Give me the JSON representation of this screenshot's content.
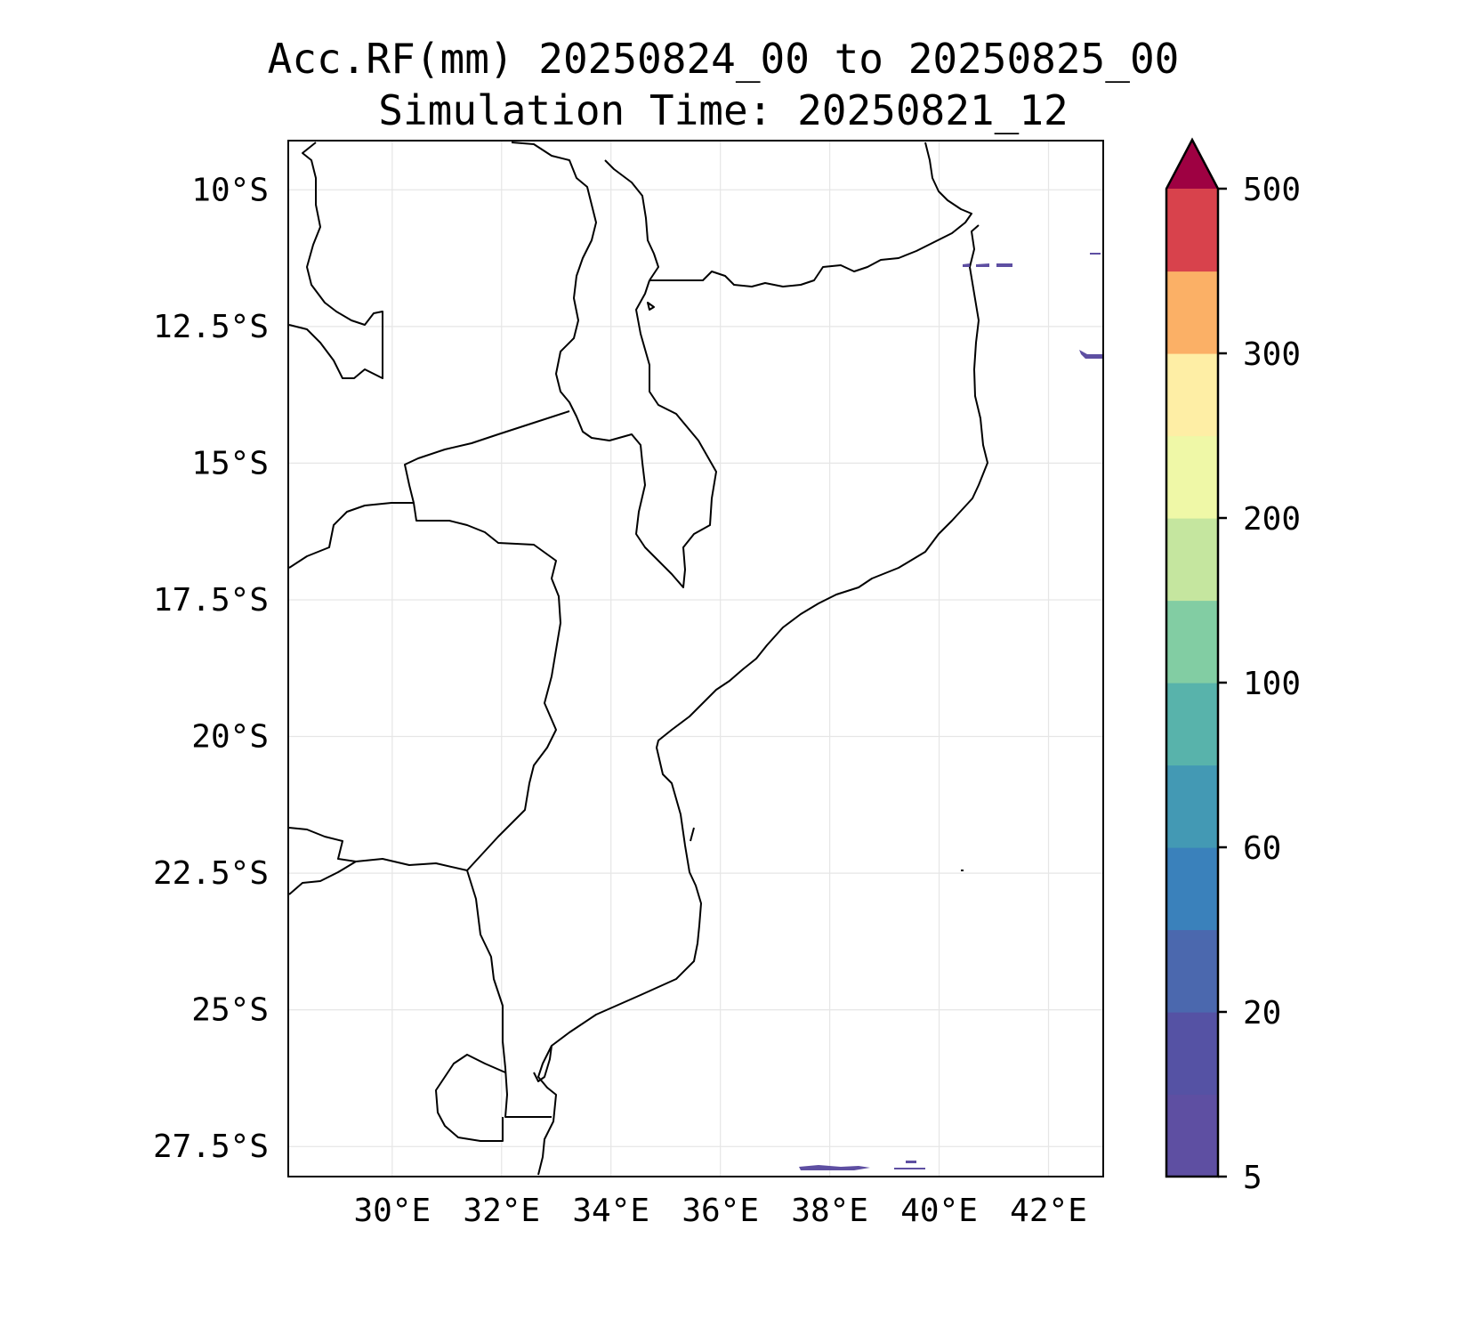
{
  "title": {
    "line1": "Acc.RF(mm) 20250824_00 to 20250825_00",
    "line2": "Simulation Time: 20250821_12"
  },
  "map": {
    "lon_range": [
      28.1,
      43.0
    ],
    "lat_range": [
      -28.05,
      -9.1
    ],
    "lon_ticks": [
      {
        "value": 30,
        "label": "30°E"
      },
      {
        "value": 32,
        "label": "32°E"
      },
      {
        "value": 34,
        "label": "34°E"
      },
      {
        "value": 36,
        "label": "36°E"
      },
      {
        "value": 38,
        "label": "38°E"
      },
      {
        "value": 40,
        "label": "40°E"
      },
      {
        "value": 42,
        "label": "42°E"
      }
    ],
    "lat_ticks": [
      {
        "value": -10,
        "label": "10°S"
      },
      {
        "value": -12.5,
        "label": "12.5°S"
      },
      {
        "value": -15,
        "label": "15°S"
      },
      {
        "value": -17.5,
        "label": "17.5°S"
      },
      {
        "value": -20,
        "label": "20°S"
      },
      {
        "value": -22.5,
        "label": "22.5°S"
      },
      {
        "value": -25,
        "label": "25°S"
      },
      {
        "value": -27.5,
        "label": "27.5°S"
      }
    ],
    "grid": true,
    "border_color": "#000000",
    "gridline_color": "#e6e6e6"
  },
  "colorbar": {
    "extend": "max",
    "bands": [
      {
        "color": "#5e4fa2"
      },
      {
        "color": "#5552a4"
      },
      {
        "color": "#4b68ae"
      },
      {
        "color": "#3a81bb"
      },
      {
        "color": "#4399b4"
      },
      {
        "color": "#58b3ab"
      },
      {
        "color": "#82cda3"
      },
      {
        "color": "#c5e69f"
      },
      {
        "color": "#eff8a7"
      },
      {
        "color": "#feeea5"
      },
      {
        "color": "#fbb066"
      },
      {
        "color": "#d8424c"
      }
    ],
    "extend_color": "#9e0142",
    "tick_labels": [
      {
        "band_index": 0,
        "label": "5"
      },
      {
        "band_index": 2,
        "label": "20"
      },
      {
        "band_index": 4,
        "label": "60"
      },
      {
        "band_index": 6,
        "label": "100"
      },
      {
        "band_index": 8,
        "label": "200"
      },
      {
        "band_index": 10,
        "label": "300"
      },
      {
        "band_index": 12,
        "label": "500"
      }
    ]
  },
  "rain_color": "#5e4fa2"
}
